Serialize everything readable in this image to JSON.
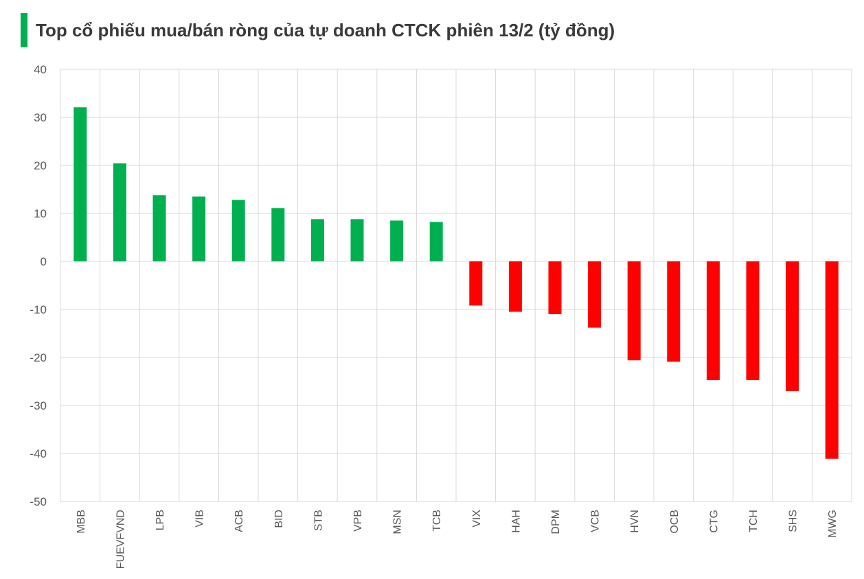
{
  "title": "Top cổ phiếu mua/bán ròng của tự doanh CTCK phiên 13/2 (tỷ đồng)",
  "colors": {
    "accent": "#00b050",
    "positive": "#00b050",
    "negative": "#ff0000",
    "grid": "#d9d9d9",
    "text": "#595959"
  },
  "chart_data": {
    "type": "bar",
    "title": "Top cổ phiếu mua/bán ròng của tự doanh CTCK phiên 13/2 (tỷ đồng)",
    "xlabel": "",
    "ylabel": "",
    "ylim": [
      -50,
      40
    ],
    "yticks": [
      40,
      30,
      20,
      10,
      0,
      -10,
      -20,
      -30,
      -40,
      -50
    ],
    "grid": true,
    "categories": [
      "MBB",
      "FUEVFVND",
      "LPB",
      "VIB",
      "ACB",
      "BID",
      "STB",
      "VPB",
      "MSN",
      "TCB",
      "VIX",
      "HAH",
      "DPM",
      "VCB",
      "HVN",
      "OCB",
      "CTG",
      "TCH",
      "SHS",
      "MWG"
    ],
    "values": [
      32.1,
      20.4,
      13.8,
      13.5,
      12.8,
      11.1,
      8.8,
      8.8,
      8.5,
      8.2,
      -9.2,
      -10.5,
      -11.0,
      -13.8,
      -20.6,
      -20.9,
      -24.7,
      -24.7,
      -27.0,
      -41.1
    ]
  }
}
